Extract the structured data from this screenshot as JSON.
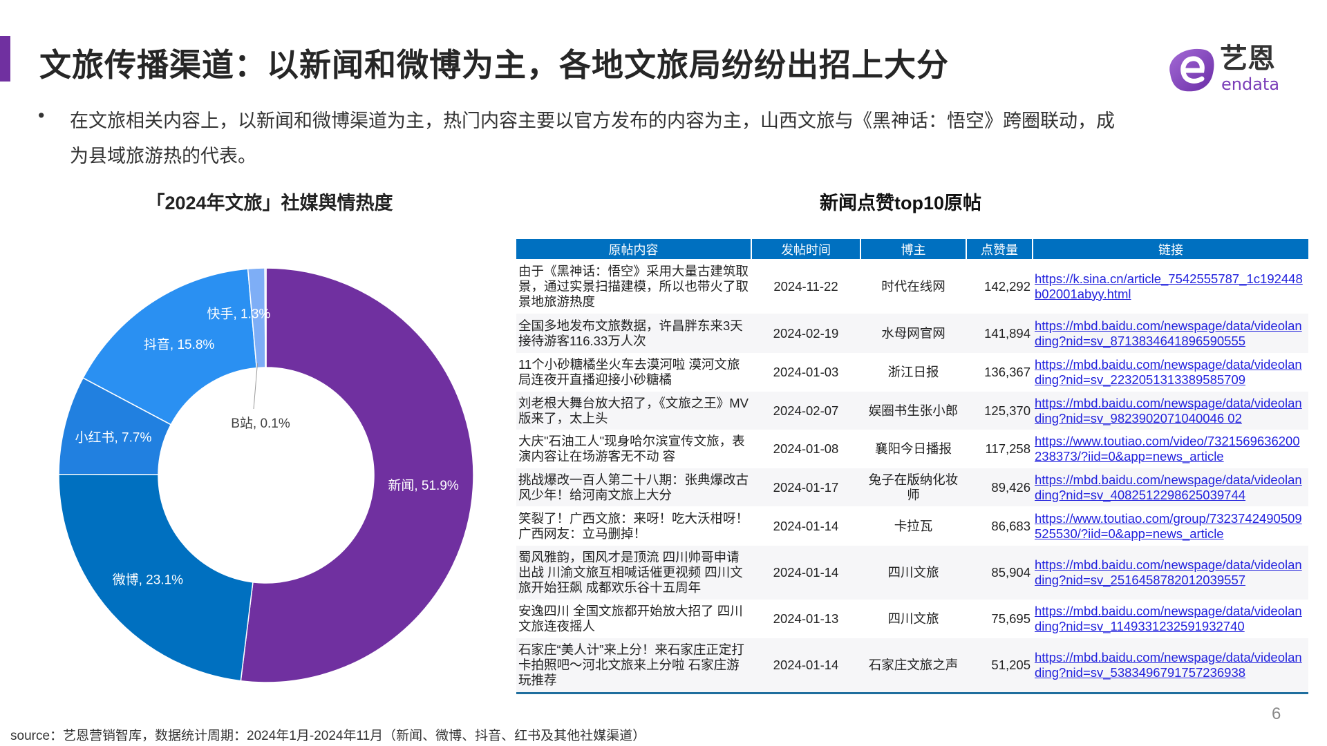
{
  "header": {
    "title": "文旅传播渠道：以新闻和微博为主，各地文旅局纷纷出招上大分",
    "logo_text_cn": "艺恩",
    "logo_text_en": "endata"
  },
  "summary": {
    "bullet": "•",
    "text": "在文旅相关内容上，以新闻和微博渠道为主，热门内容主要以官方发布的内容为主，山西文旅与《黑神话：悟空》跨圈联动，成为县域旅游热的代表。"
  },
  "chart_data": {
    "type": "pie",
    "donut": true,
    "title": "「2024年文旅」社媒舆情热度",
    "unit": "%",
    "categories": [
      "新闻",
      "微博",
      "小红书",
      "抖音",
      "快手",
      "B站"
    ],
    "values": [
      51.9,
      23.1,
      7.7,
      15.8,
      1.3,
      0.1
    ],
    "labels": [
      "新闻, 51.9%",
      "微博, 23.1%",
      "小红书, 7.7%",
      "抖音, 15.8%",
      "快手, 1.3%",
      "B站, 0.1%"
    ],
    "colors": [
      "#7030A0",
      "#0070C0",
      "#2180E0",
      "#2A90F2",
      "#7EAEF6",
      "#B7C9E8"
    ],
    "start": "top",
    "direction": "clockwise"
  },
  "table": {
    "title": "新闻点赞top10原帖",
    "columns": [
      "原帖内容",
      "发帖时间",
      "博主",
      "点赞量",
      "链接"
    ],
    "rows": [
      {
        "content": "由于《黑神话：悟空》采用大量古建筑取景，通过实景扫描建模，所以也带火了取景地旅游热度",
        "date": "2024-11-22",
        "author": "时代在线网",
        "likes": "142,292",
        "link": "https://k.sina.cn/article_7542555787_1c192448b02001abyy.html"
      },
      {
        "content": "全国多地发布文旅数据，许昌胖东来3天接待游客116.33万人次",
        "date": "2024-02-19",
        "author": "水母网官网",
        "likes": "141,894",
        "link": "https://mbd.baidu.com/newspage/data/videolanding?nid=sv_8713834641896590555"
      },
      {
        "content": "11个小砂糖橘坐火车去漠河啦 漠河文旅局连夜开直播迎接小砂糖橘",
        "date": "2024-01-03",
        "author": "浙江日报",
        "likes": "136,367",
        "link": "https://mbd.baidu.com/newspage/data/videolanding?nid=sv_2232051313389585709"
      },
      {
        "content": "刘老根大舞台放大招了，《文旅之王》MV版来了，太上头",
        "date": "2024-02-07",
        "author": "娱圈书生张小郎",
        "likes": "125,370",
        "link": "https://mbd.baidu.com/newspage/data/videolanding?nid=sv_9823902071040046 02"
      },
      {
        "content": "大庆\"石油工人\"现身哈尔滨宣传文旅，表演内容让在场游客无不动 容",
        "date": "2024-01-08",
        "author": "襄阳今日播报",
        "likes": "117,258",
        "link": "https://www.toutiao.com/video/7321569636200238373/?iid=0&app=news_article"
      },
      {
        "content": "挑战爆改一百人第二十八期：张典爆改古风少年！给河南文旅上大分",
        "date": "2024-01-17",
        "author": "兔子在版纳化妆师",
        "likes": "89,426",
        "link": "https://mbd.baidu.com/newspage/data/videolanding?nid=sv_4082512298625039744"
      },
      {
        "content": "笑裂了！广西文旅：来呀！吃大沃柑呀！广西网友：立马删掉！",
        "date": "2024-01-14",
        "author": "卡拉瓦",
        "likes": "86,683",
        "link": "https://www.toutiao.com/group/7323742490509525530/?iid=0&app=news_article"
      },
      {
        "content": "蜀风雅韵，国风才是顶流 四川帅哥申请出战 川渝文旅互相喊话催更视频 四川文旅开始狂飙 成都欢乐谷十五周年",
        "date": "2024-01-14",
        "author": "四川文旅",
        "likes": "85,904",
        "link": "https://mbd.baidu.com/newspage/data/videolanding?nid=sv_2516458782012039557"
      },
      {
        "content": "安逸四川 全国文旅都开始放大招了 四川文旅连夜摇人",
        "date": "2024-01-13",
        "author": "四川文旅",
        "likes": "75,695",
        "link": "https://mbd.baidu.com/newspage/data/videolanding?nid=sv_1149331232591932740"
      },
      {
        "content": "石家庄“美人计”来上分！来石家庄正定打卡拍照吧～河北文旅来上分啦 石家庄游玩推荐",
        "date": "2024-01-14",
        "author": "石家庄文旅之声",
        "likes": "51,205",
        "link": "https://mbd.baidu.com/newspage/data/videolanding?nid=sv_5383496791757236938"
      }
    ]
  },
  "footer": {
    "page_number": "6",
    "source": "source：艺恩营销智库，数据统计周期：2024年1月-2024年11月（新闻、微博、抖音、红书及其他社媒渠道）"
  }
}
